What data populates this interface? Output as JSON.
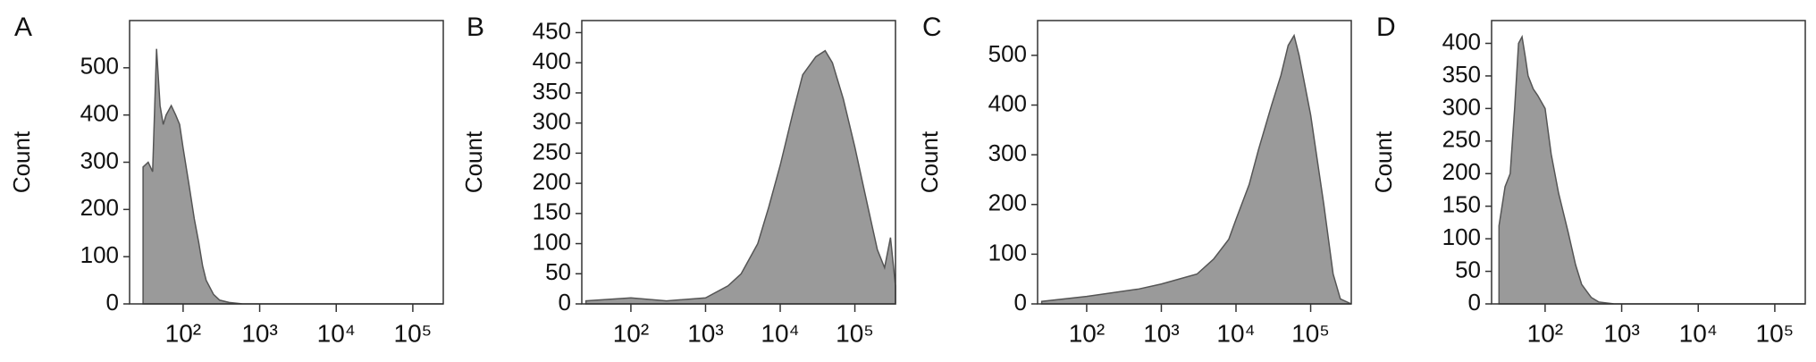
{
  "chart_data": [
    {
      "type": "area",
      "label": "A",
      "ylabel": "Count",
      "xscale": "log",
      "color": "#9a9a9a",
      "x": [
        30,
        35,
        40,
        45,
        50,
        55,
        60,
        70,
        80,
        90,
        100,
        120,
        140,
        160,
        180,
        200,
        250,
        300,
        400,
        600,
        1000,
        250000
      ],
      "values": [
        290,
        300,
        280,
        540,
        420,
        380,
        400,
        420,
        400,
        380,
        330,
        250,
        180,
        130,
        80,
        50,
        20,
        8,
        3,
        0,
        0,
        0
      ],
      "xlim": [
        20,
        250000
      ],
      "ylim": [
        0,
        600
      ],
      "xticks": [
        {
          "value": 100,
          "label": "10²"
        },
        {
          "value": 1000,
          "label": "10³"
        },
        {
          "value": 10000,
          "label": "10⁴"
        },
        {
          "value": 100000,
          "label": "10⁵"
        }
      ],
      "yticks": [
        0,
        100,
        200,
        300,
        400,
        500
      ]
    },
    {
      "type": "area",
      "label": "B",
      "ylabel": "Count",
      "xscale": "log",
      "color": "#9a9a9a",
      "x": [
        25,
        100,
        300,
        1000,
        2000,
        3000,
        5000,
        7000,
        10000,
        15000,
        20000,
        30000,
        40000,
        50000,
        70000,
        100000,
        150000,
        200000,
        250000,
        300000,
        350000
      ],
      "values": [
        5,
        10,
        5,
        10,
        30,
        50,
        100,
        160,
        230,
        320,
        380,
        410,
        420,
        400,
        340,
        260,
        160,
        90,
        60,
        110,
        30
      ],
      "xlim": [
        22,
        350000
      ],
      "ylim": [
        0,
        470
      ],
      "xticks": [
        {
          "value": 100,
          "label": "10²"
        },
        {
          "value": 1000,
          "label": "10³"
        },
        {
          "value": 10000,
          "label": "10⁴"
        },
        {
          "value": 100000,
          "label": "10⁵"
        }
      ],
      "yticks": [
        0,
        50,
        100,
        150,
        200,
        250,
        300,
        350,
        400,
        450
      ]
    },
    {
      "type": "area",
      "label": "C",
      "ylabel": "Count",
      "xscale": "log",
      "color": "#9a9a9a",
      "x": [
        25,
        100,
        500,
        1000,
        3000,
        5000,
        8000,
        10000,
        15000,
        20000,
        30000,
        40000,
        50000,
        60000,
        70000,
        100000,
        150000,
        200000,
        250000,
        350000
      ],
      "values": [
        5,
        15,
        30,
        40,
        60,
        90,
        130,
        170,
        240,
        310,
        400,
        460,
        520,
        540,
        500,
        380,
        200,
        60,
        10,
        0
      ],
      "xlim": [
        22,
        350000
      ],
      "ylim": [
        0,
        570
      ],
      "xticks": [
        {
          "value": 100,
          "label": "10²"
        },
        {
          "value": 1000,
          "label": "10³"
        },
        {
          "value": 10000,
          "label": "10⁴"
        },
        {
          "value": 100000,
          "label": "10⁵"
        }
      ],
      "yticks": [
        0,
        100,
        200,
        300,
        400,
        500
      ]
    },
    {
      "type": "area",
      "label": "D",
      "ylabel": "Count",
      "xscale": "log",
      "color": "#9a9a9a",
      "x": [
        25,
        30,
        35,
        40,
        45,
        50,
        55,
        60,
        70,
        80,
        100,
        120,
        150,
        200,
        250,
        300,
        400,
        500,
        800,
        250000
      ],
      "values": [
        120,
        180,
        200,
        300,
        400,
        410,
        380,
        350,
        330,
        320,
        300,
        230,
        170,
        110,
        60,
        30,
        10,
        3,
        0,
        0
      ],
      "xlim": [
        20,
        250000
      ],
      "ylim": [
        0,
        435
      ],
      "xticks": [
        {
          "value": 100,
          "label": "10²"
        },
        {
          "value": 1000,
          "label": "10³"
        },
        {
          "value": 10000,
          "label": "10⁴"
        },
        {
          "value": 100000,
          "label": "10⁵"
        }
      ],
      "yticks": [
        0,
        50,
        100,
        150,
        200,
        250,
        300,
        350,
        400
      ]
    }
  ]
}
